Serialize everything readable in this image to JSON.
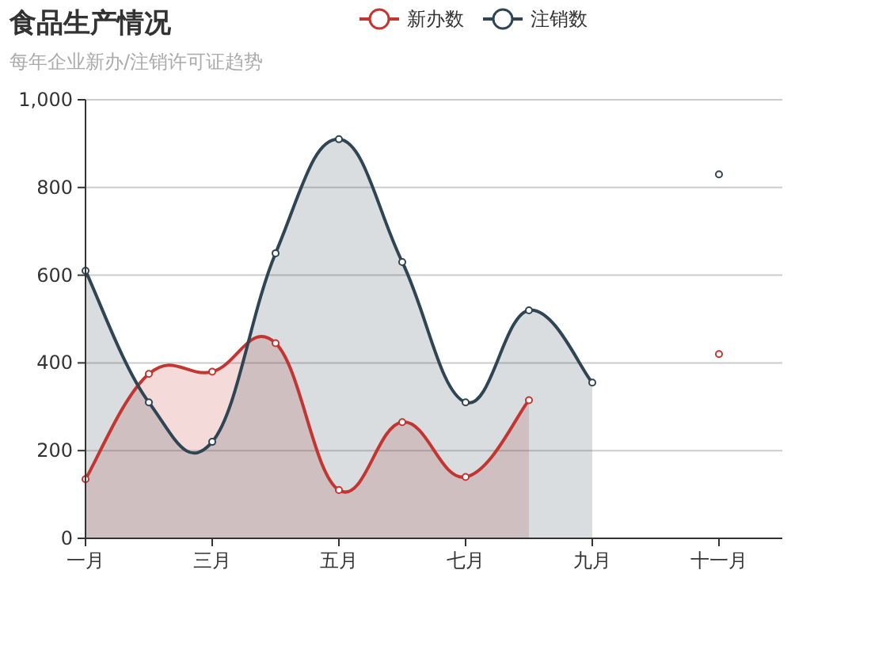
{
  "chart_data": {
    "type": "area",
    "title": "食品生产情况",
    "subtitle": "每年企业新办/注销许可证趋势",
    "categories": [
      "一月",
      null,
      "三月",
      null,
      "五月",
      null,
      "七月",
      null,
      "九月",
      null,
      "十一月",
      null
    ],
    "series": [
      {
        "name": "新办数",
        "color": "#c23531",
        "values": [
          135,
          375,
          380,
          445,
          110,
          265,
          140,
          315,
          null,
          null,
          null,
          null
        ]
      },
      {
        "name": "注销数",
        "color": "#2f4554",
        "values": [
          610,
          310,
          220,
          650,
          910,
          630,
          310,
          520,
          355,
          null,
          null,
          null
        ]
      },
      {
        "type": "scatter",
        "color": "#c23531",
        "values": [
          null,
          null,
          null,
          null,
          null,
          null,
          null,
          null,
          null,
          null,
          420,
          null
        ]
      },
      {
        "type": "scatter",
        "color": "#2f4554",
        "values": [
          null,
          null,
          null,
          null,
          null,
          null,
          null,
          null,
          null,
          null,
          830,
          null
        ]
      }
    ],
    "ylim": [
      0,
      1000
    ],
    "yticks": [
      0,
      200,
      400,
      600,
      800,
      {
        "value": 1000,
        "label": "1,000"
      }
    ],
    "grid": "y",
    "legend": "top",
    "marker": "circle",
    "line_style": "solid"
  }
}
